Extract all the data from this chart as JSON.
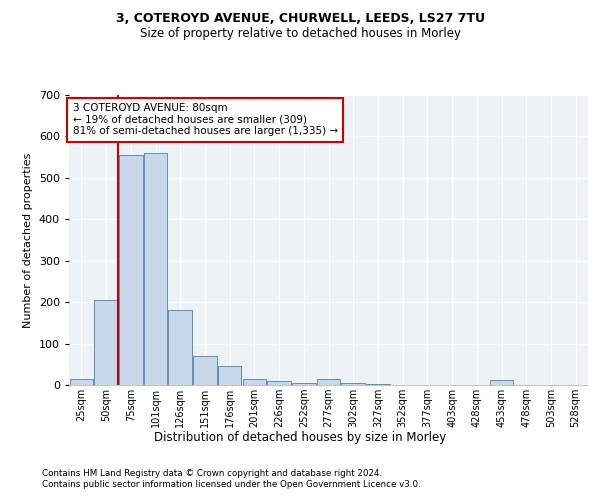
{
  "title1": "3, COTEROYD AVENUE, CHURWELL, LEEDS, LS27 7TU",
  "title2": "Size of property relative to detached houses in Morley",
  "xlabel": "Distribution of detached houses by size in Morley",
  "ylabel": "Number of detached properties",
  "footer1": "Contains HM Land Registry data © Crown copyright and database right 2024.",
  "footer2": "Contains public sector information licensed under the Open Government Licence v3.0.",
  "annotation_line1": "3 COTEROYD AVENUE: 80sqm",
  "annotation_line2": "← 19% of detached houses are smaller (309)",
  "annotation_line3": "81% of semi-detached houses are larger (1,335) →",
  "bar_color": "#c8d8ea",
  "bar_edge_color": "#6090b8",
  "vline_color": "#cc0000",
  "annotation_box_color": "#cc0000",
  "bins": [
    "25sqm",
    "50sqm",
    "75sqm",
    "101sqm",
    "126sqm",
    "151sqm",
    "176sqm",
    "201sqm",
    "226sqm",
    "252sqm",
    "277sqm",
    "302sqm",
    "327sqm",
    "352sqm",
    "377sqm",
    "403sqm",
    "428sqm",
    "453sqm",
    "478sqm",
    "503sqm",
    "528sqm"
  ],
  "values": [
    15,
    205,
    555,
    560,
    180,
    70,
    45,
    15,
    10,
    5,
    15,
    4,
    2,
    0,
    0,
    0,
    0,
    12,
    0,
    0,
    0
  ],
  "vline_x": 1.5,
  "ylim": [
    0,
    700
  ],
  "yticks": [
    0,
    100,
    200,
    300,
    400,
    500,
    600,
    700
  ],
  "plot_bg_color": "#edf2f7"
}
